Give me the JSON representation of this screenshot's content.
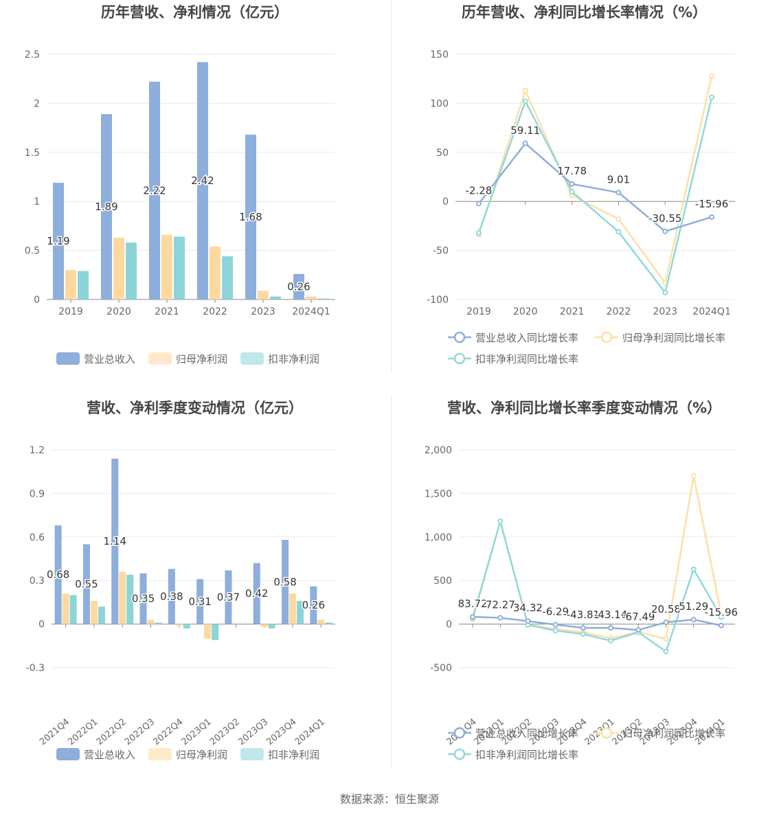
{
  "source_text": "数据来源：恒生聚源",
  "colors": {
    "revenue": "#8eaedb",
    "netprofit": "#fdd9a0",
    "deducted": "#8bd5d9",
    "revenue_line": "#8eaedb",
    "netprofit_line": "#fddfa8",
    "deducted_line": "#8fd9d9",
    "grid": "#e6e8ef",
    "axis": "#888888",
    "text": "#666666"
  },
  "chart_data": [
    {
      "id": "annual-bar",
      "type": "bar",
      "title": "历年营收、净利情况（亿元）",
      "categories": [
        "2019",
        "2020",
        "2021",
        "2022",
        "2023",
        "2024Q1"
      ],
      "series": [
        {
          "name": "营业总收入",
          "values": [
            1.19,
            1.89,
            2.22,
            2.42,
            1.68,
            0.26
          ],
          "color": "#8eaedb"
        },
        {
          "name": "归母净利润",
          "values": [
            0.3,
            0.63,
            0.66,
            0.54,
            0.09,
            0.03
          ],
          "color": "#fdd9a0"
        },
        {
          "name": "扣非净利润",
          "values": [
            0.29,
            0.58,
            0.64,
            0.44,
            0.03,
            0.01
          ],
          "color": "#8bd5d9"
        }
      ],
      "data_labels": [
        "1.19",
        "1.89",
        "2.22",
        "2.42",
        "1.68",
        "0.26"
      ],
      "ylim": [
        0,
        2.5
      ],
      "yticks": [
        0,
        0.5,
        1,
        1.5,
        2,
        2.5
      ],
      "ytick_labels": [
        "0",
        "0.5",
        "1",
        "1.5",
        "2",
        "2.5"
      ],
      "grid": true,
      "legend_placement": "bottom"
    },
    {
      "id": "annual-line",
      "type": "line",
      "title": "历年营收、净利同比增长率情况（%）",
      "categories": [
        "2019",
        "2020",
        "2021",
        "2022",
        "2023",
        "2024Q1"
      ],
      "series": [
        {
          "name": "营业总收入同比增长率",
          "values": [
            -2.28,
            59.11,
            17.78,
            9.01,
            -30.55,
            -15.96
          ],
          "color": "#8eaedb"
        },
        {
          "name": "归母净利润同比增长率",
          "values": [
            -34,
            113,
            6,
            -18,
            -83,
            128
          ],
          "color": "#fddfa8"
        },
        {
          "name": "扣非净利润同比增长率",
          "values": [
            -32,
            102,
            10,
            -31,
            -93,
            106
          ],
          "color": "#8fd9d9"
        }
      ],
      "data_labels": [
        "-2.28",
        "59.11",
        "17.78",
        "9.01",
        "-30.55",
        "-15.96"
      ],
      "ylim": [
        -100,
        150
      ],
      "yticks": [
        -100,
        -50,
        0,
        50,
        100,
        150
      ],
      "ytick_labels": [
        "-100",
        "-50",
        "0",
        "50",
        "100",
        "150"
      ],
      "grid": true,
      "legend_placement": "bottom"
    },
    {
      "id": "quarter-bar",
      "type": "bar",
      "title": "营收、净利季度变动情况（亿元）",
      "categories": [
        "2021Q4",
        "2022Q1",
        "2022Q2",
        "2022Q3",
        "2022Q4",
        "2023Q1",
        "2023Q2",
        "2023Q3",
        "2023Q4",
        "2024Q1"
      ],
      "series": [
        {
          "name": "营业总收入",
          "values": [
            0.68,
            0.55,
            1.14,
            0.35,
            0.38,
            0.31,
            0.37,
            0.42,
            0.58,
            0.26
          ],
          "color": "#8eaedb"
        },
        {
          "name": "归母净利润",
          "values": [
            0.21,
            0.16,
            0.36,
            0.03,
            -0.01,
            -0.1,
            0.0,
            -0.02,
            0.21,
            0.03
          ],
          "color": "#fdd9a0"
        },
        {
          "name": "扣非净利润",
          "values": [
            0.2,
            0.12,
            0.34,
            0.01,
            -0.03,
            -0.11,
            0.0,
            -0.03,
            0.16,
            0.01
          ],
          "color": "#8bd5d9"
        }
      ],
      "data_labels": [
        "0.68",
        "0.55",
        "1.14",
        "0.35",
        "0.38",
        "0.31",
        "0.37",
        "0.42",
        "0.58",
        "0.26"
      ],
      "ylim": [
        -0.3,
        1.2
      ],
      "yticks": [
        -0.3,
        0,
        0.3,
        0.6,
        0.9,
        1.2
      ],
      "ytick_labels": [
        "-0.3",
        "0",
        "0.3",
        "0.6",
        "0.9",
        "1.2"
      ],
      "grid": true,
      "legend_placement": "bottom"
    },
    {
      "id": "quarter-line",
      "type": "line",
      "title": "营收、净利同比增长率季度变动情况（%）",
      "categories": [
        "2021Q4",
        "2022Q1",
        "2022Q2",
        "2022Q3",
        "2022Q4",
        "2023Q1",
        "2023Q2",
        "2023Q3",
        "2023Q4",
        "2024Q1"
      ],
      "series": [
        {
          "name": "营业总收入同比增长率",
          "values": [
            83.72,
            72.27,
            34.32,
            -6.29,
            -43.81,
            -43.14,
            -67.49,
            20.58,
            51.29,
            -15.96
          ],
          "color": "#8eaedb"
        },
        {
          "name": "归母净利润同比增长率",
          "values": [
            50,
            1180,
            -10,
            -55,
            -95,
            -160,
            -90,
            -170,
            1700,
            110
          ],
          "color": "#fddfa8"
        },
        {
          "name": "扣非净利润同比增长率",
          "values": [
            70,
            1180,
            -10,
            -75,
            -115,
            -190,
            -95,
            -315,
            630,
            80
          ],
          "color": "#8fd9d9"
        }
      ],
      "data_labels": [
        "83.72",
        "72.27",
        "34.32",
        "-6.29",
        "-43.81",
        "-43.14",
        "-67.49",
        "20.58",
        "51.29",
        "-15.96"
      ],
      "ylim": [
        -500,
        2000
      ],
      "yticks": [
        -500,
        0,
        500,
        1000,
        1500,
        2000
      ],
      "ytick_labels": [
        "-500",
        "0",
        "500",
        "1,000",
        "1,500",
        "2,000"
      ],
      "grid": true,
      "legend_placement": "bottom"
    }
  ]
}
